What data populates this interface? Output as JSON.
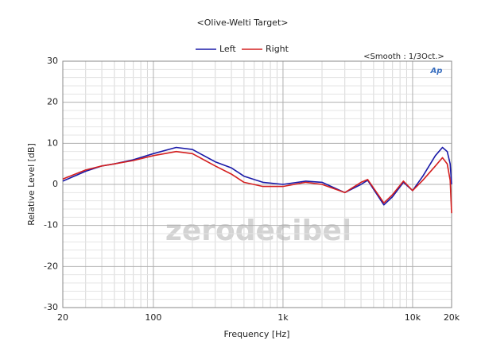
{
  "chart_data": {
    "type": "line",
    "title": "<Olive-Welti Target>",
    "subtitle": "<Smooth : 1/3Oct.>",
    "x_label": "Frequency [Hz]",
    "y_label": "Relative Level [dB]",
    "logo": "Ap",
    "watermark": "zerodecibel",
    "x_scale": "log",
    "xlim": [
      20,
      20000
    ],
    "xticks": [
      20,
      100,
      {
        "value": 1000,
        "label": "1k"
      },
      {
        "value": 10000,
        "label": "10k"
      },
      {
        "value": 20000,
        "label": "20k"
      }
    ],
    "ylim": [
      -30,
      30
    ],
    "yticks": [
      -30,
      -20,
      -10,
      0,
      10,
      20,
      30
    ],
    "grid": true,
    "minor_grid": true,
    "legend": "top",
    "x": [
      20,
      30,
      40,
      50,
      70,
      100,
      150,
      200,
      300,
      400,
      500,
      700,
      1000,
      1500,
      2000,
      3000,
      4000,
      4500,
      6000,
      7000,
      8500,
      10000,
      12000,
      15000,
      17000,
      18500,
      19500,
      20000
    ],
    "series": [
      {
        "name": "Left",
        "color": "#1a1aa8",
        "values": [
          0.8,
          3.2,
          4.5,
          5,
          6,
          7.5,
          9,
          8.5,
          5.5,
          4,
          2,
          0.5,
          0,
          0.8,
          0.5,
          -2,
          0,
          1,
          -5,
          -3,
          0.5,
          -1.5,
          2,
          7,
          9,
          8,
          5,
          0
        ]
      },
      {
        "name": "Right",
        "color": "#d42020",
        "values": [
          1.3,
          3.5,
          4.5,
          5,
          5.8,
          7,
          8,
          7.5,
          4.5,
          2.5,
          0.5,
          -0.5,
          -0.5,
          0.5,
          0,
          -2,
          0.5,
          1.2,
          -4.5,
          -2.5,
          0.8,
          -1.5,
          1,
          4.5,
          6.5,
          5,
          1,
          -7
        ]
      }
    ]
  }
}
